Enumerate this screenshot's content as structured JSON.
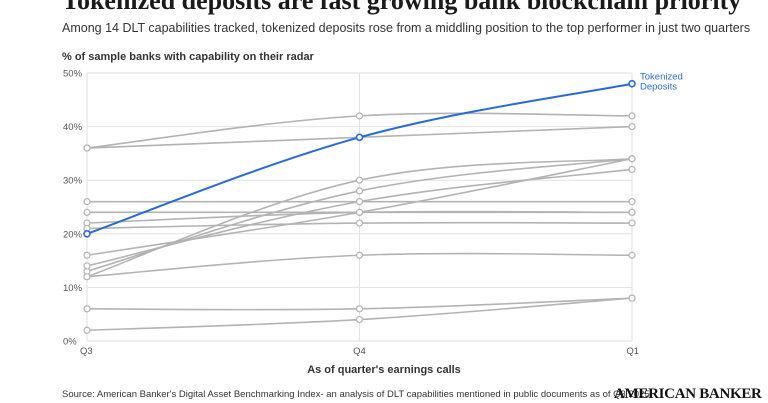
{
  "header": {
    "title": "Tokenized deposits are fast growing bank blockchain priority",
    "subtitle": "Among 14 DLT capabilities tracked, tokenized deposits rose from a middling position to the top performer in just two quarters"
  },
  "footer": {
    "source": "Source: American Banker's Digital Asset Benchmarking Index- an analysis of DLT capabilities mentioned in public documents as of Q3 2025-",
    "brand": "AMERICAN BANKER"
  },
  "colors": {
    "highlight": "#2a6ad6",
    "other": "#b3b3b3",
    "grid": "#e2e2e2"
  },
  "chart_data": {
    "type": "line",
    "title": "Tokenized deposits are fast growing bank blockchain priority",
    "subtitle": "Among 14 DLT capabilities tracked, tokenized deposits rose from a middling position to the top performer in just two quarters",
    "xlabel": "As of quarter's earnings calls",
    "ylabel": "% of sample banks with capability on their radar",
    "categories": [
      "Q3",
      "Q4",
      "Q1"
    ],
    "yticks": [
      "0%",
      "10%",
      "20%",
      "30%",
      "40%",
      "50%"
    ],
    "ylim": [
      0,
      50
    ],
    "grid": true,
    "highlight_label": "Tokenized Deposits",
    "series": [
      {
        "name": "Tokenized Deposits",
        "values": [
          20,
          38,
          48
        ],
        "highlight": true
      },
      {
        "values": [
          36,
          42,
          42
        ]
      },
      {
        "values": [
          36,
          38,
          40
        ]
      },
      {
        "values": [
          12,
          30,
          34
        ]
      },
      {
        "values": [
          13,
          28,
          34
        ]
      },
      {
        "values": [
          16,
          24,
          34
        ]
      },
      {
        "values": [
          14,
          26,
          32
        ]
      },
      {
        "values": [
          26,
          26,
          26
        ]
      },
      {
        "values": [
          24,
          24,
          24
        ]
      },
      {
        "values": [
          22,
          24,
          24
        ]
      },
      {
        "values": [
          12,
          16,
          16
        ]
      },
      {
        "values": [
          6,
          6,
          8
        ]
      },
      {
        "values": [
          2,
          4,
          8
        ]
      },
      {
        "values": [
          21,
          22,
          22
        ]
      }
    ]
  }
}
